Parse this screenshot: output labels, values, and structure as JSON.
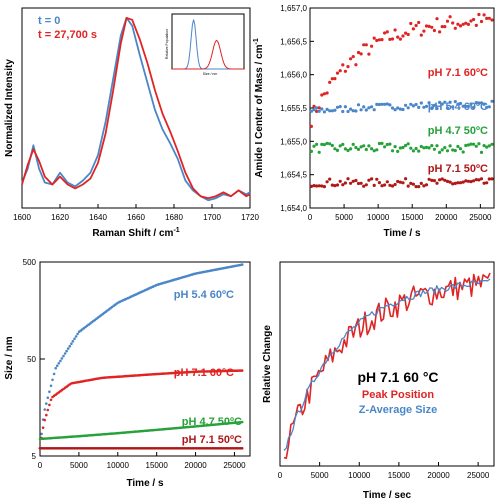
{
  "chart_data": [
    {
      "panel": "top-left",
      "type": "line",
      "xlabel": "Raman Shift / cm",
      "xlabel_sup": "-1",
      "ylabel": "Normalized Intensity",
      "x_ticks": [
        "1600",
        "1620",
        "1640",
        "1660",
        "1680",
        "1700",
        "1720"
      ],
      "xlim": [
        1600,
        1720
      ],
      "legend": [
        {
          "name": "t = 0",
          "color": "#4a86c8"
        },
        {
          "name": "t = 27,700 s",
          "color": "#e02424"
        }
      ],
      "series": [
        {
          "name": "t = 0",
          "color": "#4a86c8",
          "x": [
            1600,
            1603,
            1606,
            1609,
            1612,
            1616,
            1620,
            1624,
            1628,
            1632,
            1636,
            1640,
            1644,
            1648,
            1652,
            1655,
            1658,
            1662,
            1666,
            1670,
            1674,
            1678,
            1682,
            1686,
            1690,
            1694,
            1698,
            1702,
            1706,
            1710,
            1714,
            1718,
            1720
          ],
          "y": [
            0.13,
            0.2,
            0.32,
            0.2,
            0.13,
            0.12,
            0.18,
            0.13,
            0.11,
            0.14,
            0.18,
            0.27,
            0.44,
            0.66,
            0.88,
            0.97,
            0.93,
            0.78,
            0.64,
            0.5,
            0.4,
            0.33,
            0.25,
            0.14,
            0.09,
            0.06,
            0.04,
            0.05,
            0.07,
            0.06,
            0.09,
            0.07,
            0.08
          ]
        },
        {
          "name": "t = 27,700 s",
          "color": "#e02424",
          "x": [
            1600,
            1603,
            1606,
            1609,
            1612,
            1616,
            1620,
            1624,
            1628,
            1632,
            1636,
            1640,
            1644,
            1648,
            1652,
            1655,
            1658,
            1662,
            1666,
            1670,
            1674,
            1678,
            1682,
            1686,
            1690,
            1694,
            1698,
            1702,
            1706,
            1710,
            1714,
            1718,
            1720
          ],
          "y": [
            0.12,
            0.22,
            0.3,
            0.24,
            0.16,
            0.12,
            0.16,
            0.12,
            0.1,
            0.12,
            0.15,
            0.23,
            0.38,
            0.6,
            0.84,
            0.97,
            0.96,
            0.86,
            0.74,
            0.6,
            0.48,
            0.39,
            0.29,
            0.18,
            0.1,
            0.06,
            0.05,
            0.06,
            0.08,
            0.06,
            0.09,
            0.06,
            0.07
          ]
        }
      ],
      "inset": {
        "xlabel": "Size / nm",
        "ylabel": "Relative Population",
        "series": [
          {
            "name": "t = 0",
            "color": "#4a86c8",
            "peak": 0.3,
            "height": 0.95,
            "width": 0.05
          },
          {
            "name": "t = 27,700 s",
            "color": "#e02424",
            "peak": 0.62,
            "height": 0.55,
            "width": 0.08
          }
        ]
      }
    },
    {
      "panel": "top-right",
      "type": "scatter",
      "xlabel": "Time / s",
      "ylabel": "Amide I Center of Mass / cm",
      "ylabel_sup": "-1",
      "x_ticks": [
        "0",
        "5000",
        "10000",
        "15000",
        "20000",
        "25000"
      ],
      "y_ticks": [
        "1,654,0",
        "1,654,5",
        "1,655,0",
        "1,655,5",
        "1,656,0",
        "1,656,5",
        "1,657,0"
      ],
      "xlim": [
        0,
        27000
      ],
      "ylim": [
        1654.0,
        1657.0
      ],
      "series": [
        {
          "name": "pH 7.1 60ºC",
          "color": "#e02424",
          "trend": "rise",
          "start": 1655.3,
          "end": 1656.85,
          "tau": 7000,
          "noise": 0.12
        },
        {
          "name": "pH 5.4 60ºC",
          "color": "#4a86c8",
          "trend": "flat",
          "start": 1655.45,
          "end": 1655.58,
          "tau": 15000,
          "noise": 0.05
        },
        {
          "name": "pH 4.7 50ºC",
          "color": "#27a23a",
          "trend": "flat",
          "start": 1654.9,
          "end": 1654.9,
          "tau": 1,
          "noise": 0.07
        },
        {
          "name": "pH 7.1 50ºC",
          "color": "#b01818",
          "trend": "flat",
          "start": 1654.38,
          "end": 1654.38,
          "tau": 1,
          "noise": 0.06
        }
      ]
    },
    {
      "panel": "bottom-left",
      "type": "scatter",
      "xlabel": "Time / s",
      "ylabel": "Size / nm",
      "x_ticks": [
        "0",
        "5000",
        "10000",
        "15000",
        "20000",
        "25000"
      ],
      "y_ticks": [
        "5",
        "50",
        "500"
      ],
      "yscale": "log",
      "xlim": [
        0,
        27000
      ],
      "ylim": [
        5,
        500
      ],
      "series": [
        {
          "name": "pH 5.4 60ºC",
          "color": "#4a86c8",
          "values_at": [
            [
              0,
              6
            ],
            [
              500,
              14
            ],
            [
              2000,
              40
            ],
            [
              5000,
              95
            ],
            [
              10000,
              190
            ],
            [
              15000,
              290
            ],
            [
              20000,
              380
            ],
            [
              26000,
              470
            ]
          ]
        },
        {
          "name": "pH 7.1 60ºC",
          "color": "#e02424",
          "values_at": [
            [
              0,
              6
            ],
            [
              500,
              11
            ],
            [
              1500,
              20
            ],
            [
              4000,
              28
            ],
            [
              8000,
              32
            ],
            [
              15000,
              35
            ],
            [
              20000,
              37
            ],
            [
              26000,
              38
            ]
          ]
        },
        {
          "name": "pH 4.7 50ºC",
          "color": "#27a23a",
          "values_at": [
            [
              0,
              7.5
            ],
            [
              5000,
              8
            ],
            [
              10000,
              8.6
            ],
            [
              15000,
              9.3
            ],
            [
              20000,
              10.1
            ],
            [
              26000,
              11.2
            ]
          ]
        },
        {
          "name": "pH 7.1 50ºC",
          "color": "#b01818",
          "values_at": [
            [
              0,
              6
            ],
            [
              26000,
              6
            ]
          ]
        }
      ]
    },
    {
      "panel": "bottom-right",
      "type": "line",
      "xlabel": "Time / sec",
      "ylabel": "Relative Change",
      "x_ticks": [
        "0",
        "5000",
        "10000",
        "15000",
        "20000",
        "25000"
      ],
      "xlim": [
        0,
        27000
      ],
      "ylim": [
        0,
        1
      ],
      "legend_title": "pH 7.1 60 °C",
      "series": [
        {
          "name": "Peak Position",
          "color": "#e02424",
          "tau": 7500,
          "noise": 0.07
        },
        {
          "name": "Z-Average Size",
          "color": "#4a86c8",
          "tau": 7000,
          "noise": 0.02
        }
      ]
    }
  ]
}
